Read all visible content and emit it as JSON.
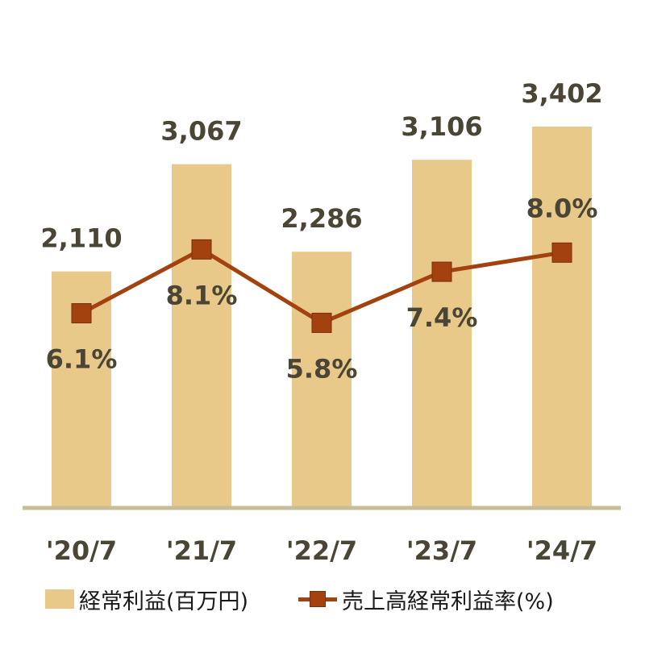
{
  "colors": {
    "bar": "#e8c98a",
    "line": "#a3420f",
    "marker": "#a3420f",
    "axis": "#c7bd9a",
    "label": "#4a4534"
  },
  "legend": {
    "bar_label": "経常利益(百万円)",
    "line_label": "売上高経常利益率(%)"
  },
  "chart_data": {
    "type": "bar",
    "categories": [
      "'20/7",
      "'21/7",
      "'22/7",
      "'23/7",
      "'24/7"
    ],
    "series": [
      {
        "name": "経常利益(百万円)",
        "type": "bar",
        "values": [
          2110,
          3067,
          2286,
          3106,
          3402
        ],
        "labels": [
          "2,110",
          "3,067",
          "2,286",
          "3,106",
          "3,402"
        ]
      },
      {
        "name": "売上高経常利益率(%)",
        "type": "line",
        "values": [
          6.1,
          8.1,
          5.8,
          7.4,
          8.0
        ],
        "labels": [
          "6.1%",
          "8.1%",
          "5.8%",
          "7.4%",
          "8.0%"
        ]
      }
    ],
    "bar_axis_range": [
      0,
      4100
    ],
    "line_axis_range": [
      0,
      14.4
    ],
    "grid": false,
    "legend_position": "bottom"
  }
}
